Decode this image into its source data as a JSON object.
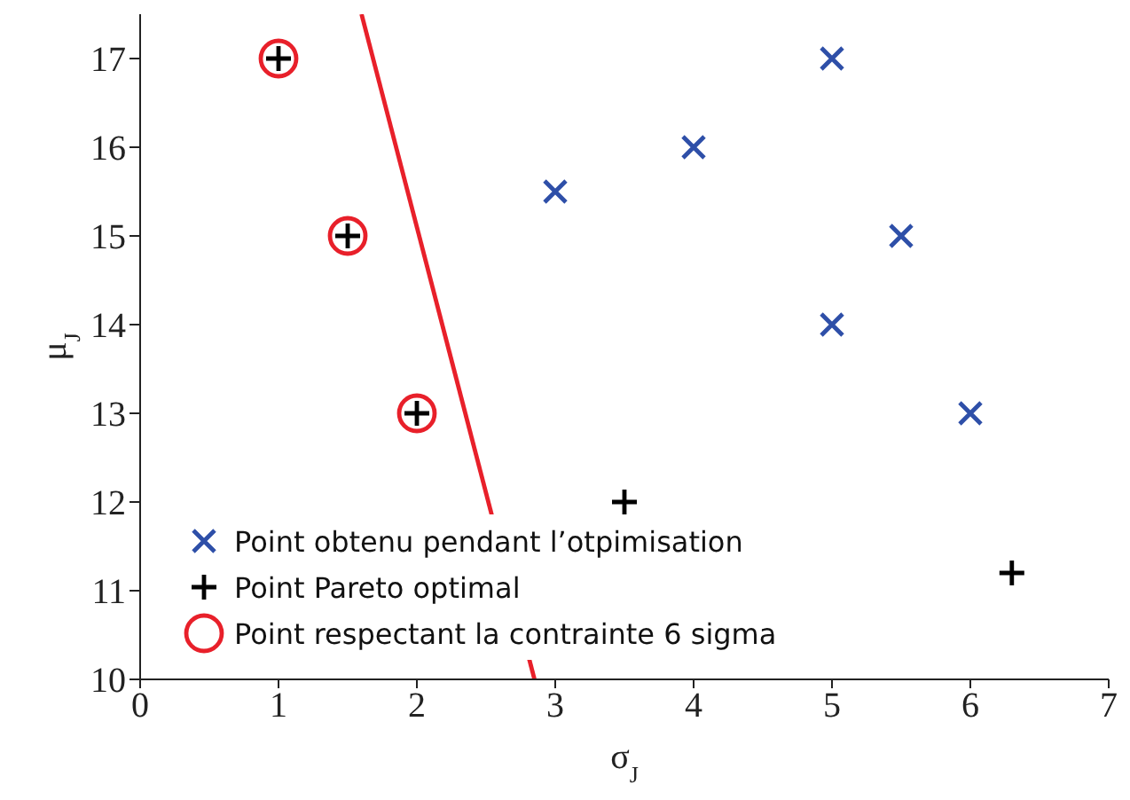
{
  "chart_data": {
    "type": "scatter",
    "xlabel": "σ$_{J}$",
    "ylabel": "μ$_{J}$",
    "xlim": [
      0,
      7
    ],
    "ylim": [
      10,
      17.5
    ],
    "xticks": [
      0,
      1,
      2,
      3,
      4,
      5,
      6,
      7
    ],
    "yticks": [
      10,
      11,
      12,
      13,
      14,
      15,
      16,
      17
    ],
    "grid": false,
    "legend": "bottom left",
    "series": [
      {
        "name": "Point obtenu pendant l’otpimisation",
        "color": "#2e4fa8",
        "marker": "x",
        "x": [
          3,
          4,
          5,
          5,
          5.5,
          6
        ],
        "values": [
          15.5,
          16,
          17,
          14,
          15,
          13
        ]
      },
      {
        "name": "Point Pareto optimal",
        "color": "#000000",
        "marker": "cross",
        "x": [
          1,
          1.5,
          2,
          3.5,
          6.3
        ],
        "values": [
          17,
          15,
          13,
          12,
          11.2
        ]
      },
      {
        "name": "Point respectant la contrainte 6 sigma",
        "color": "#e8202a",
        "marker": "circle",
        "x": [
          1,
          1.5,
          2
        ],
        "values": [
          17,
          15,
          13
        ]
      },
      {
        "type": "line",
        "color": "#e8202a",
        "marker": "none",
        "x": [
          1.6,
          2.85
        ],
        "values": [
          17.5,
          10
        ]
      }
    ]
  }
}
